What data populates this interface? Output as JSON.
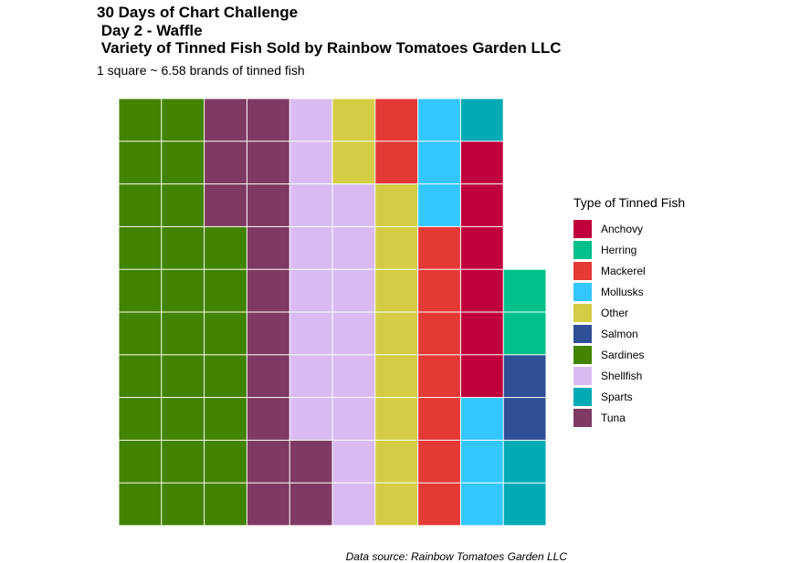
{
  "title_lines": [
    "30 Days of Chart Challenge",
    " Day 2 - Waffle",
    " Variety of Tinned Fish Sold by Rainbow Tomatoes Garden LLC"
  ],
  "subtitle": "1 square ~ 6.58 brands of tinned fish",
  "caption": "Data source: Rainbow Tomatoes Garden LLC",
  "legend_title": "Type of Tinned Fish",
  "chart_data": {
    "type": "waffle",
    "rows": 10,
    "legend_position": "right",
    "categories": [
      {
        "name": "Anchovy",
        "color": "#C0003C"
      },
      {
        "name": "Herring",
        "color": "#00C08B"
      },
      {
        "name": "Mackerel",
        "color": "#E53935"
      },
      {
        "name": "Mollusks",
        "color": "#33C6FF"
      },
      {
        "name": "Other",
        "color": "#D4CC45"
      },
      {
        "name": "Salmon",
        "color": "#2F4F96"
      },
      {
        "name": "Sardines",
        "color": "#428300"
      },
      {
        "name": "Shellfish",
        "color": "#D9BBF2"
      },
      {
        "name": "Sparts",
        "color": "#00ABB5"
      },
      {
        "name": "Tuna",
        "color": "#7E3A62"
      }
    ],
    "columns": [
      [
        "Sardines",
        "Sardines",
        "Sardines",
        "Sardines",
        "Sardines",
        "Sardines",
        "Sardines",
        "Sardines",
        "Sardines",
        "Sardines"
      ],
      [
        "Sardines",
        "Sardines",
        "Sardines",
        "Sardines",
        "Sardines",
        "Sardines",
        "Sardines",
        "Sardines",
        "Sardines",
        "Sardines"
      ],
      [
        "Sardines",
        "Sardines",
        "Sardines",
        "Sardines",
        "Sardines",
        "Sardines",
        "Sardines",
        "Tuna",
        "Tuna",
        "Tuna"
      ],
      [
        "Tuna",
        "Tuna",
        "Tuna",
        "Tuna",
        "Tuna",
        "Tuna",
        "Tuna",
        "Tuna",
        "Tuna",
        "Tuna"
      ],
      [
        "Tuna",
        "Tuna",
        "Shellfish",
        "Shellfish",
        "Shellfish",
        "Shellfish",
        "Shellfish",
        "Shellfish",
        "Shellfish",
        "Shellfish"
      ],
      [
        "Shellfish",
        "Shellfish",
        "Shellfish",
        "Shellfish",
        "Shellfish",
        "Shellfish",
        "Shellfish",
        "Shellfish",
        "Other",
        "Other"
      ],
      [
        "Other",
        "Other",
        "Other",
        "Other",
        "Other",
        "Other",
        "Other",
        "Other",
        "Mackerel",
        "Mackerel"
      ],
      [
        "Mackerel",
        "Mackerel",
        "Mackerel",
        "Mackerel",
        "Mackerel",
        "Mackerel",
        "Mackerel",
        "Mollusks",
        "Mollusks",
        "Mollusks"
      ],
      [
        "Mollusks",
        "Mollusks",
        "Mollusks",
        "Anchovy",
        "Anchovy",
        "Anchovy",
        "Anchovy",
        "Anchovy",
        "Anchovy",
        "Sparts"
      ],
      [
        "Sparts",
        "Sparts",
        "Salmon",
        "Salmon",
        "Herring",
        "Herring"
      ]
    ]
  }
}
